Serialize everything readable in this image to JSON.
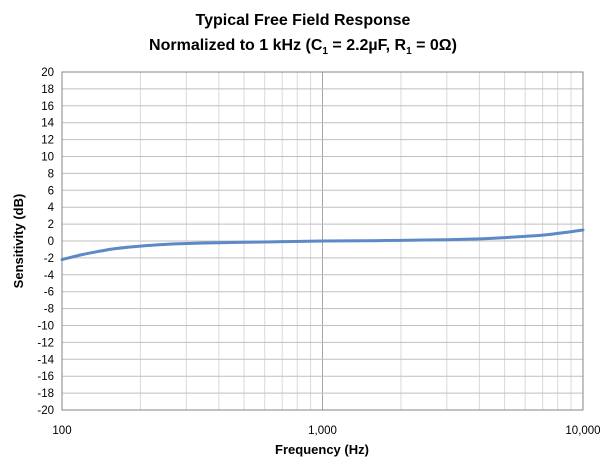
{
  "chart_data": {
    "type": "line",
    "title": "Typical Free Field Response",
    "subtitle": {
      "prefix": "Normalized to 1 kHz (C",
      "c_sub": "1",
      "middle": " = 2.2µF, R",
      "r_sub": "1",
      "suffix": " = 0Ω)"
    },
    "xlabel": "Frequency (Hz)",
    "ylabel": "Sensitivity (dB)",
    "xscale": "log",
    "xlim": [
      100,
      10000
    ],
    "ylim": [
      -20,
      20
    ],
    "grid": true,
    "legend": "none",
    "x_ticks": [
      100,
      1000,
      10000
    ],
    "x_tick_labels": [
      "100",
      "1,000",
      "10,000"
    ],
    "y_ticks": [
      -20,
      -18,
      -16,
      -14,
      -12,
      -10,
      -8,
      -6,
      -4,
      -2,
      0,
      2,
      4,
      6,
      8,
      10,
      12,
      14,
      16,
      18,
      20
    ],
    "y_tick_labels": [
      "-20",
      "-18",
      "-16",
      "-14",
      "-12",
      "-10",
      "-8",
      "-6",
      "-4",
      "-2",
      "0",
      "2",
      "4",
      "6",
      "8",
      "10",
      "12",
      "14",
      "16",
      "18",
      "20"
    ],
    "series": [
      {
        "color": "#5b8ac6",
        "x": [
          100,
          120,
          140,
          160,
          200,
          250,
          300,
          400,
          500,
          700,
          1000,
          1500,
          2000,
          3000,
          4000,
          5000,
          6000,
          7000,
          8000,
          9000,
          10000
        ],
        "y": [
          -2.2,
          -1.6,
          -1.2,
          -0.9,
          -0.6,
          -0.4,
          -0.3,
          -0.2,
          -0.15,
          -0.08,
          0,
          0.03,
          0.08,
          0.15,
          0.25,
          0.4,
          0.55,
          0.7,
          0.9,
          1.1,
          1.3
        ]
      }
    ]
  }
}
